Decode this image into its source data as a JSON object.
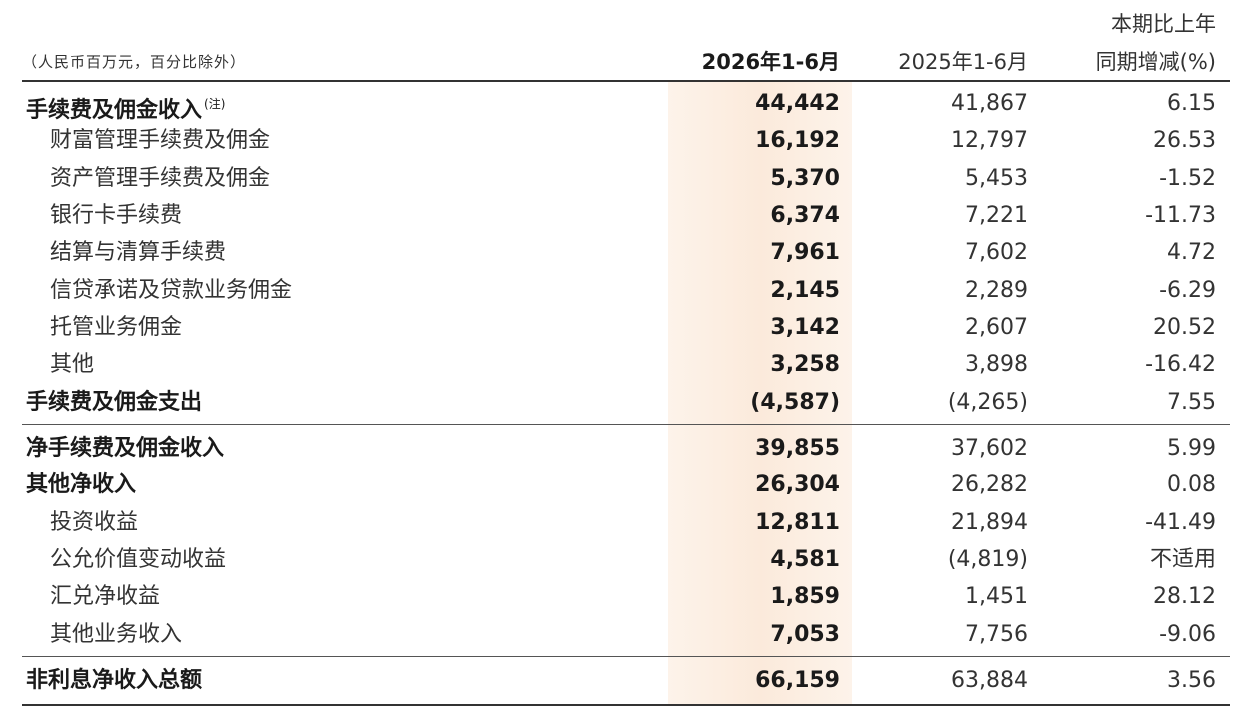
{
  "header": {
    "unit_note": "（人民币百万元，百分比除外）",
    "col_current": "2026年1-6月",
    "col_prior": "2025年1-6月",
    "col_change_line1": "本期比上年",
    "col_change_line2": "同期增减(%)"
  },
  "rows": [
    {
      "label": "手续费及佣金收入",
      "note": "(注)",
      "current": "44,442",
      "prior": "41,867",
      "change": "6.15"
    },
    {
      "label": "财富管理手续费及佣金",
      "current": "16,192",
      "prior": "12,797",
      "change": "26.53"
    },
    {
      "label": "资产管理手续费及佣金",
      "current": "5,370",
      "prior": "5,453",
      "change": "-1.52"
    },
    {
      "label": "银行卡手续费",
      "current": "6,374",
      "prior": "7,221",
      "change": "-11.73"
    },
    {
      "label": "结算与清算手续费",
      "current": "7,961",
      "prior": "7,602",
      "change": "4.72"
    },
    {
      "label": "信贷承诺及贷款业务佣金",
      "current": "2,145",
      "prior": "2,289",
      "change": "-6.29"
    },
    {
      "label": "托管业务佣金",
      "current": "3,142",
      "prior": "2,607",
      "change": "20.52"
    },
    {
      "label": "其他",
      "current": "3,258",
      "prior": "3,898",
      "change": "-16.42"
    },
    {
      "label": "手续费及佣金支出",
      "current": "(4,587)",
      "prior": "(4,265)",
      "change": "7.55"
    },
    {
      "label": "净手续费及佣金收入",
      "current": "39,855",
      "prior": "37,602",
      "change": "5.99"
    },
    {
      "label": "其他净收入",
      "current": "26,304",
      "prior": "26,282",
      "change": "0.08"
    },
    {
      "label": "投资收益",
      "current": "12,811",
      "prior": "21,894",
      "change": "-41.49"
    },
    {
      "label": "公允价值变动收益",
      "current": "4,581",
      "prior": "(4,819)",
      "change": "不适用"
    },
    {
      "label": "汇兑净收益",
      "current": "1,859",
      "prior": "1,451",
      "change": "28.12"
    },
    {
      "label": "其他业务收入",
      "current": "7,053",
      "prior": "7,756",
      "change": "-9.06"
    },
    {
      "label": "非利息净收入总额",
      "current": "66,159",
      "prior": "63,884",
      "change": "3.56"
    }
  ],
  "colors": {
    "text": "#222222",
    "rule": "#333333",
    "highlight": "#fbeadb"
  }
}
